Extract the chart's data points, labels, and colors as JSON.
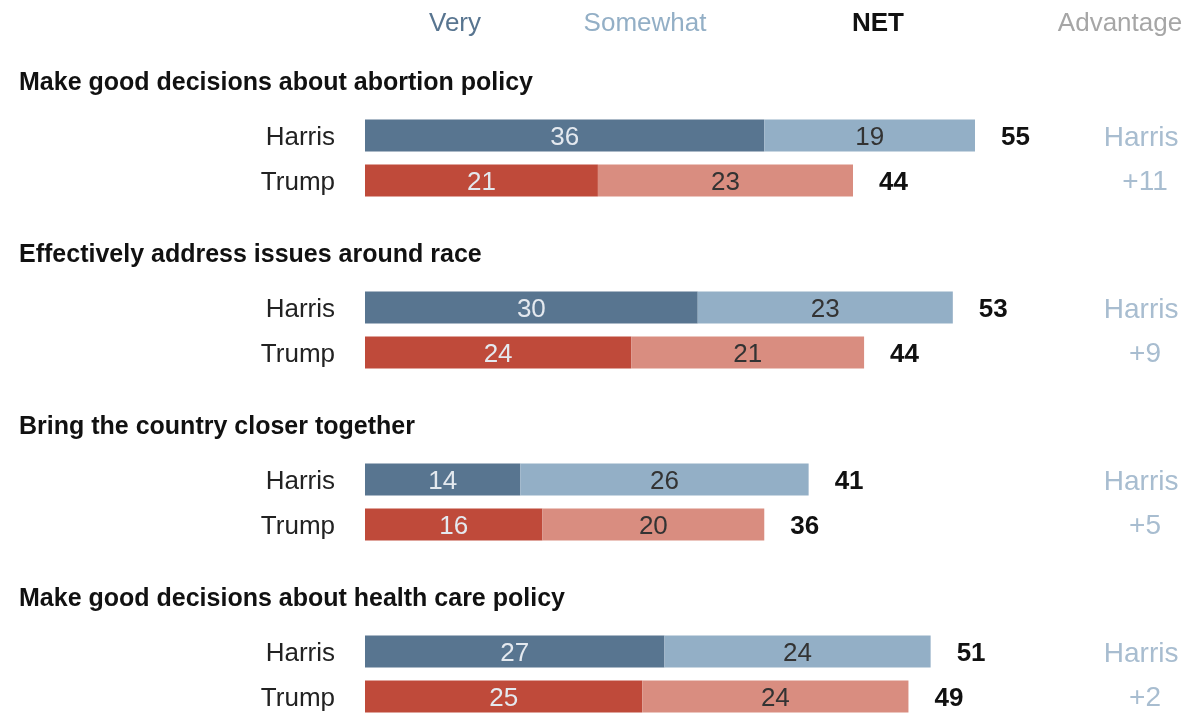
{
  "chart_data": [
    {
      "type": "bar",
      "orientation": "horizontal",
      "stacked": true,
      "data_labels": true,
      "title": "Make good decisions about abortion policy",
      "categories": [
        "Harris",
        "Trump"
      ],
      "series": [
        {
          "name": "Very",
          "colors": [
            "#587590",
            "#bf4a3a"
          ],
          "values": [
            36,
            21
          ]
        },
        {
          "name": "Somewhat",
          "colors": [
            "#93afc6",
            "#d98d80"
          ],
          "values": [
            19,
            23
          ]
        }
      ],
      "totals": [
        "55",
        "44"
      ],
      "annotations": [
        "NET",
        "Advantage",
        "Harris +11"
      ]
    },
    {
      "type": "bar",
      "orientation": "horizontal",
      "stacked": true,
      "data_labels": true,
      "title": "Effectively address issues around race",
      "categories": [
        "Harris",
        "Trump"
      ],
      "series": [
        {
          "colors": [
            "#587590",
            "#bf4a3a"
          ],
          "values": [
            30,
            24
          ]
        },
        {
          "colors": [
            "#93afc6",
            "#d98d80"
          ],
          "values": [
            23,
            21
          ]
        }
      ],
      "totals": [
        "53",
        "44"
      ],
      "annotations": [
        "Harris +9"
      ]
    },
    {
      "type": "bar",
      "orientation": "horizontal",
      "stacked": true,
      "data_labels": true,
      "title": "Bring the country closer together",
      "categories": [
        "Harris",
        "Trump"
      ],
      "series": [
        {
          "colors": [
            "#587590",
            "#bf4a3a"
          ],
          "values": [
            14,
            16
          ]
        },
        {
          "colors": [
            "#93afc6",
            "#d98d80"
          ],
          "values": [
            26,
            20
          ]
        }
      ],
      "totals": [
        "41",
        "36"
      ],
      "annotations": [
        "Harris +5"
      ]
    },
    {
      "type": "bar",
      "orientation": "horizontal",
      "stacked": true,
      "data_labels": true,
      "title": "Make good decisions about health care policy",
      "categories": [
        "Harris",
        "Trump"
      ],
      "series": [
        {
          "colors": [
            "#587590",
            "#bf4a3a"
          ],
          "values": [
            27,
            25
          ]
        },
        {
          "colors": [
            "#93afc6",
            "#d98d80"
          ],
          "values": [
            24,
            24
          ]
        }
      ],
      "totals": [
        "51",
        "49"
      ],
      "annotations": [
        "Harris +2"
      ]
    }
  ]
}
